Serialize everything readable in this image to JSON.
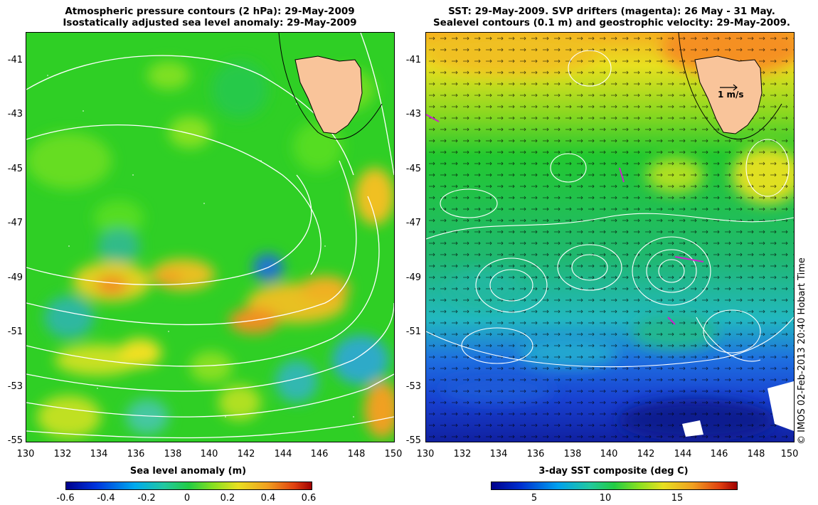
{
  "left_panel": {
    "title_line1": "Atmospheric pressure contours (2 hPa): 29-May-2009",
    "title_line2": "Isostatically adjusted sea level anomaly: 29-May-2009",
    "y_ticks": [
      "-41",
      "-43",
      "-45",
      "-47",
      "-49",
      "-51",
      "-53",
      "-55"
    ],
    "x_ticks": [
      "130",
      "132",
      "134",
      "136",
      "138",
      "140",
      "142",
      "144",
      "146",
      "148",
      "150"
    ],
    "colorbar_label": "Sea level anomaly (m)",
    "colorbar_ticks": [
      "-0.6",
      "-0.4",
      "-0.2",
      "0",
      "0.2",
      "0.4",
      "0.6"
    ],
    "colorbar_range": [
      -0.6,
      0.6
    ]
  },
  "right_panel": {
    "title_line1": "SST: 29-May-2009. SVP drifters (magenta): 26 May - 31 May.",
    "title_line2": "Sealevel contours (0.1 m) and geostrophic velocity: 29-May-2009.",
    "y_ticks": [
      "-41",
      "-43",
      "-45",
      "-47",
      "-49",
      "-51",
      "-53",
      "-55"
    ],
    "x_ticks": [
      "130",
      "132",
      "134",
      "136",
      "138",
      "140",
      "142",
      "144",
      "146",
      "148",
      "150"
    ],
    "velocity_scale_label": "1 m/s",
    "colorbar_label": "3-day SST composite (deg C)",
    "colorbar_ticks": [
      "5",
      "10",
      "15"
    ]
  },
  "credit": "© IMOS 02-Feb-2013 20:40 Hobart Time",
  "colors": {
    "land": "#f9c49a",
    "sla_background": "#22cc22",
    "contour": "#ffffff"
  },
  "map_extent": {
    "lon": [
      130,
      150
    ],
    "lat": [
      -55,
      -40
    ]
  }
}
